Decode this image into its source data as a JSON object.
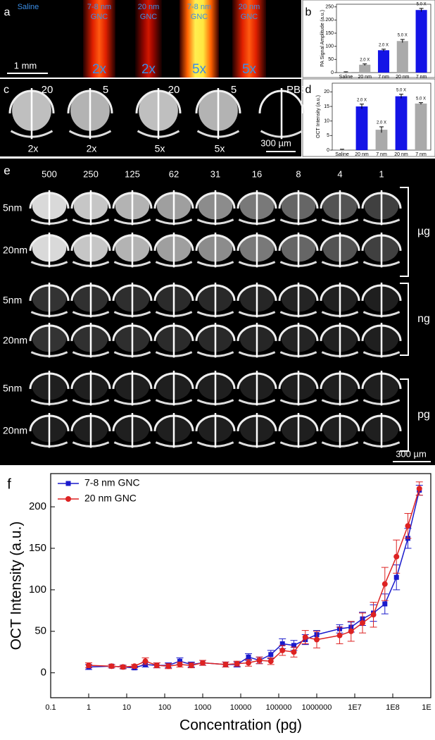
{
  "panel_a": {
    "letter": "a",
    "scale_bar": "1 mm",
    "samples": [
      {
        "name": "Saline"
      },
      {
        "name": "7-8 nm",
        "sub": "GNC",
        "fold": "2x"
      },
      {
        "name": "20 nm",
        "sub": "GNC",
        "fold": "2x"
      },
      {
        "name": "7-8 nm",
        "sub": "GNC",
        "fold": "5x"
      },
      {
        "name": "20 nm",
        "sub": "GNC",
        "fold": "5x"
      }
    ]
  },
  "panel_c": {
    "letter": "c",
    "scale_bar": "300 µm",
    "samples": [
      {
        "size": "20",
        "fold": "2x"
      },
      {
        "size": "5",
        "fold": "2x"
      },
      {
        "size": "20",
        "fold": "5x"
      },
      {
        "size": "5",
        "fold": "5x"
      },
      {
        "size": "PBS"
      }
    ]
  },
  "panel_e": {
    "letter": "e",
    "scale_bar": "300 µm",
    "columns": [
      500,
      250,
      125,
      62,
      31,
      16,
      8,
      4,
      1
    ],
    "rows": [
      "5nm",
      "20nm",
      "5nm",
      "20nm",
      "5nm",
      "20nm"
    ],
    "groups": [
      "µg",
      "ng",
      "pg"
    ]
  },
  "chart_data": [
    {
      "letter": "b",
      "type": "bar",
      "ylabel": "PA Signal Amplitude (a.u.)",
      "categories": [
        "Saline",
        "20 nm",
        "7 nm",
        "20 nm",
        "7 nm"
      ],
      "values": [
        2,
        30,
        85,
        120,
        238
      ],
      "errors": [
        1,
        3,
        4,
        6,
        6
      ],
      "colors": [
        "#aaaaaa",
        "#aaaaaa",
        "#1414e6",
        "#aaaaaa",
        "#1414e6"
      ],
      "annotations": [
        null,
        "2.0 X",
        "2.0 X",
        "5.0 X",
        "5.0 X"
      ],
      "ylim": [
        0,
        260
      ],
      "yticks": [
        0,
        50,
        100,
        150,
        200,
        250
      ]
    },
    {
      "letter": "d",
      "type": "bar",
      "ylabel": "OCT Intensity (a.u.)",
      "categories": [
        "Saline",
        "20 nm",
        "7 nm",
        "20 nm",
        "7 nm"
      ],
      "values": [
        0.2,
        15,
        7,
        18.5,
        16
      ],
      "errors": [
        0.1,
        0.8,
        1,
        0.7,
        0.3
      ],
      "colors": [
        "#aaaaaa",
        "#1414e6",
        "#aaaaaa",
        "#1414e6",
        "#aaaaaa"
      ],
      "annotations": [
        null,
        "2.0 X",
        "2.0 X",
        "5.0 X",
        "5.0 X"
      ],
      "ylim": [
        0,
        23
      ],
      "yticks": [
        0,
        5,
        10,
        15,
        20
      ]
    },
    {
      "letter": "f",
      "type": "line",
      "xlabel": "Concentration (pg)",
      "ylabel": "OCT Intensity (a.u.)",
      "xscale": "log",
      "legend": "upper left",
      "x": [
        1,
        4,
        8,
        16,
        31,
        62,
        125,
        250,
        500,
        1000,
        4000,
        8000,
        16000,
        31000,
        62000,
        125000,
        250000,
        500000,
        1000000,
        4000000,
        8000000,
        16000000,
        31000000,
        62000000,
        125000000,
        250000000,
        500000000
      ],
      "series": [
        {
          "name": "7-8 nm GNC",
          "color": "#1a1acc",
          "marker": "square",
          "values": [
            7,
            8,
            7,
            6,
            10,
            9,
            9,
            14,
            10,
            12,
            10,
            10,
            19,
            15,
            22,
            35,
            33,
            40,
            46,
            53,
            55,
            65,
            72,
            83,
            115,
            162,
            220
          ],
          "errors": [
            3,
            2,
            2,
            2,
            3,
            3,
            3,
            4,
            3,
            3,
            3,
            3,
            4,
            4,
            5,
            6,
            6,
            6,
            5,
            5,
            6,
            8,
            10,
            12,
            15,
            12,
            6
          ]
        },
        {
          "name": "20 nm GNC",
          "color": "#dd2222",
          "marker": "circle",
          "values": [
            9,
            8,
            7,
            8,
            14,
            9,
            8,
            10,
            9,
            12,
            10,
            11,
            12,
            15,
            14,
            27,
            25,
            43,
            40,
            45,
            50,
            60,
            70,
            107,
            140,
            177,
            222
          ],
          "errors": [
            3,
            2,
            2,
            2,
            4,
            3,
            3,
            3,
            3,
            3,
            3,
            3,
            4,
            4,
            4,
            6,
            6,
            8,
            10,
            10,
            12,
            12,
            15,
            20,
            20,
            15,
            8
          ]
        }
      ],
      "xlim": [
        0.1,
        1000000000
      ],
      "ylim": [
        -30,
        240
      ],
      "xticks": [
        0.1,
        1,
        10,
        100,
        1000,
        10000,
        100000,
        1000000,
        {
          "value": 10000000,
          "label": "1E7"
        },
        {
          "value": 100000000,
          "label": "1E8"
        },
        {
          "value": 1000000000,
          "label": "1E"
        }
      ],
      "yticks": [
        0,
        50,
        100,
        150,
        200
      ]
    }
  ]
}
